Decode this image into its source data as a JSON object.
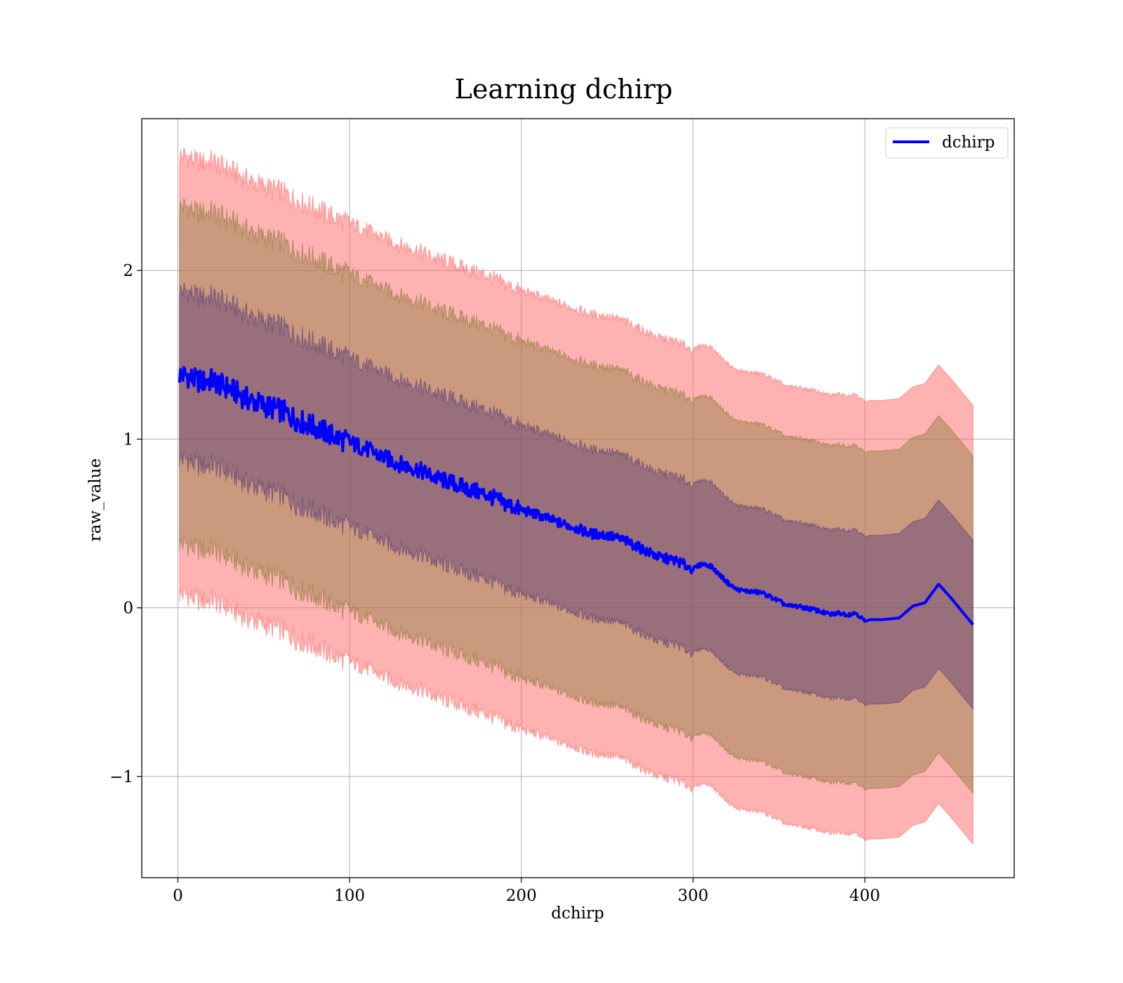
{
  "chart_data": {
    "type": "line",
    "title": "Learning dchirp",
    "xlabel": "dchirp",
    "ylabel": "raw_value",
    "xlim": [
      -21,
      487
    ],
    "ylim": [
      -1.6,
      2.9
    ],
    "xticks": [
      0,
      100,
      200,
      300,
      400
    ],
    "xtick_labels": [
      "0",
      "100",
      "200",
      "300",
      "400"
    ],
    "yticks": [
      -1,
      0,
      1,
      2
    ],
    "ytick_labels": [
      "−1",
      "0",
      "1",
      "2"
    ],
    "grid": true,
    "legend": {
      "position": "top-right",
      "entries": [
        "dchirp"
      ]
    },
    "series": [
      {
        "name": "dchirp",
        "color": "#0000ff",
        "x": [
          1,
          5,
          10,
          15,
          20,
          25,
          30,
          40,
          50,
          60,
          70,
          80,
          90,
          100,
          110,
          120,
          130,
          140,
          150,
          160,
          170,
          180,
          190,
          200,
          210,
          220,
          230,
          240,
          250,
          260,
          270,
          280,
          290,
          300,
          305,
          310,
          320,
          325,
          330,
          340,
          350,
          355,
          360,
          370,
          380,
          385,
          390,
          395,
          400,
          403,
          410,
          420,
          428,
          435,
          443,
          450,
          463
        ],
        "y": [
          1.38,
          1.38,
          1.35,
          1.34,
          1.35,
          1.32,
          1.3,
          1.24,
          1.2,
          1.17,
          1.11,
          1.07,
          1.02,
          0.98,
          0.94,
          0.89,
          0.85,
          0.82,
          0.77,
          0.74,
          0.7,
          0.67,
          0.62,
          0.58,
          0.55,
          0.51,
          0.48,
          0.44,
          0.43,
          0.4,
          0.35,
          0.3,
          0.28,
          0.23,
          0.26,
          0.25,
          0.15,
          0.11,
          0.1,
          0.09,
          0.04,
          0.01,
          0.01,
          -0.01,
          -0.04,
          -0.03,
          -0.04,
          -0.03,
          -0.08,
          -0.07,
          -0.07,
          -0.06,
          0.01,
          0.03,
          0.14,
          0.06,
          -0.1
        ]
      }
    ],
    "bands": [
      {
        "color": "#ff6666",
        "opacity": 0.5,
        "offset": 1.3
      },
      {
        "color": "#8c7a3c",
        "opacity": 0.45,
        "offset": 1.0
      },
      {
        "color": "#5a3c78",
        "opacity": 0.45,
        "offset": 0.5
      }
    ]
  }
}
